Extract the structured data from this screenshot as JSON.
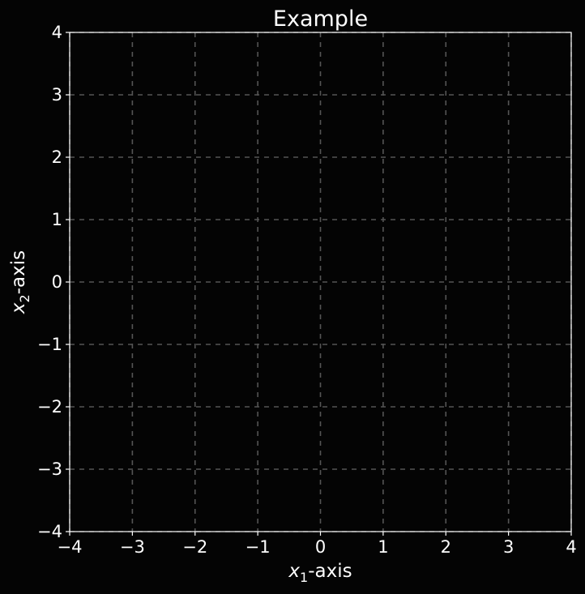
{
  "chart_data": {
    "type": "scatter",
    "title": "Example",
    "xlabel": {
      "base": "x",
      "sub": "1",
      "suffix": "-axis"
    },
    "ylabel": {
      "base": "x",
      "sub": "2",
      "suffix": "-axis"
    },
    "xlim": [
      -4,
      4
    ],
    "ylim": [
      -4,
      4
    ],
    "xticks": [
      -4,
      -3,
      -2,
      -1,
      0,
      1,
      2,
      3,
      4
    ],
    "yticks": [
      -4,
      -3,
      -2,
      -1,
      0,
      1,
      2,
      3,
      4
    ],
    "xtick_labels": [
      "−4",
      "−3",
      "−2",
      "−1",
      "0",
      "1",
      "2",
      "3",
      "4"
    ],
    "ytick_labels": [
      "−4",
      "−3",
      "−2",
      "−1",
      "0",
      "1",
      "2",
      "3",
      "4"
    ],
    "grid": true,
    "series": [],
    "colors": {
      "background": "#040404",
      "grid": "#555555",
      "frame": "#ffffff",
      "text": "#ffffff"
    }
  }
}
